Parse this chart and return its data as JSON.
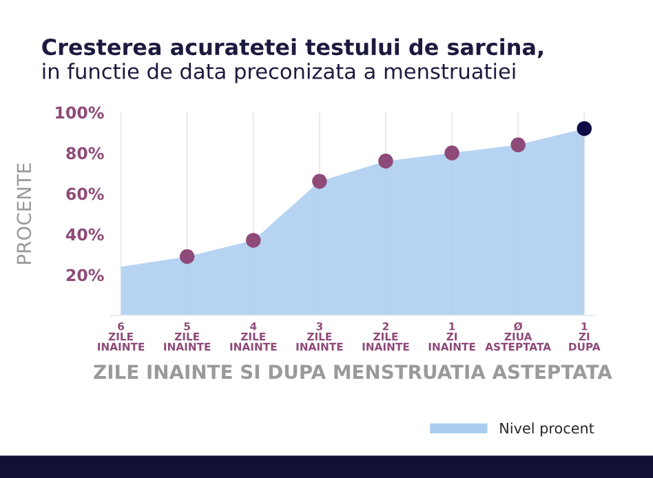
{
  "chart_data": {
    "type": "area",
    "title": "Cresterea acuratetei testului de sarcina,",
    "subtitle": "in functie de data preconizata a menstruatiei",
    "xlabel": "ZILE INAINTE SI DUPA MENSTRUATIA ASTEPTATA",
    "ylabel": "PROCENTE",
    "categories": [
      "6\nZILE\nINAINTE",
      "5\nZILE\nINAINTE",
      "4\nZILE\nINAINTE",
      "3\nZILE\nINAINTE",
      "2\nZILE\nINAINTE",
      "1\nZI\nINAINTE",
      "Ø\nZIUA\nASTEPTATA",
      "1\nZI\nDUPA"
    ],
    "series": [
      {
        "name": "Nivel procent",
        "color": "#a9cdee",
        "values": [
          24,
          29,
          37,
          66,
          76,
          80,
          84,
          92
        ],
        "colors": [
          null,
          "#8e4a78",
          "#8e4a78",
          "#8e4a78",
          "#8e4a78",
          "#8e4a78",
          "#8e4a78",
          "#0d0b45"
        ]
      }
    ],
    "ylim": [
      0,
      100
    ],
    "yticks": [
      {
        "value": 20,
        "label": "20%"
      },
      {
        "value": 40,
        "label": "40%"
      },
      {
        "value": 60,
        "label": "60%"
      },
      {
        "value": 80,
        "label": "80%"
      },
      {
        "value": 100,
        "label": "100%"
      }
    ],
    "grid": "x",
    "marker": "circle",
    "legend": "bottom right"
  }
}
